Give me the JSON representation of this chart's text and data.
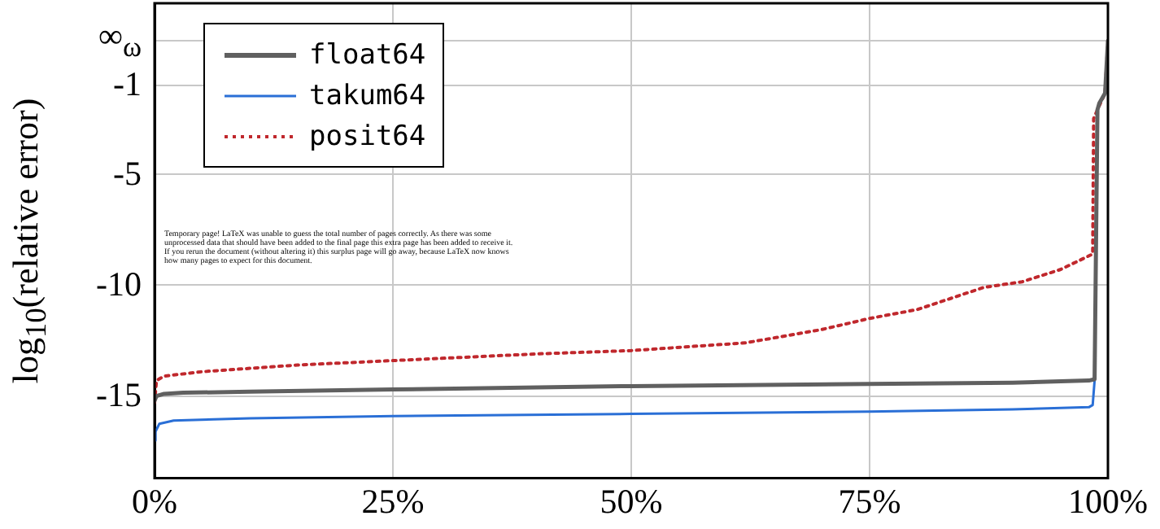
{
  "chart_data": {
    "type": "line",
    "ylabel": "log$_{10}$(relative error)",
    "xlim": [
      0,
      100
    ],
    "xticks": [
      {
        "value": 0,
        "label": "0%"
      },
      {
        "value": 25,
        "label": "25%"
      },
      {
        "value": 50,
        "label": "50%"
      },
      {
        "value": 75,
        "label": "75%"
      },
      {
        "value": 100,
        "label": "100%"
      }
    ],
    "ylim": [
      -18.7,
      2.7
    ],
    "yticks": [
      -15,
      -10,
      -5,
      -1,
      {
        "value": 1,
        "label": "∞$_{ω}$"
      }
    ],
    "grid": true,
    "legend": "top left",
    "marker": "none",
    "annotations": [
      "Temporary page! LaTeX was unable to guess the total number of pages correctly. As there was some unprocessed data that should have been added to the final page this extra page has been added to receive it. If you rerun the document (without altering it) this surplus page will go away, because LaTeX now knows how many pages to expect for this document."
    ],
    "series": [
      {
        "name": "float64",
        "color": "#606060",
        "line_style": "solid",
        "x": [
          0,
          0.2,
          1,
          3,
          10,
          25,
          50,
          75,
          90,
          98,
          98.6,
          98.9,
          99.1,
          99.7,
          100
        ],
        "values": [
          -15.2,
          -15,
          -14.9,
          -14.85,
          -14.8,
          -14.7,
          -14.55,
          -14.45,
          -14.4,
          -14.3,
          -14.24,
          -2.1,
          -1.8,
          -1.35,
          1
        ]
      },
      {
        "name": "takum64",
        "color": "#2a6fd6",
        "line_style": "solid",
        "x": [
          0,
          0.1,
          0.5,
          2,
          10,
          25,
          50,
          75,
          90,
          98,
          98.4,
          98.6,
          98.9
        ],
        "values": [
          -17,
          -16.6,
          -16.25,
          -16.1,
          -16,
          -15.9,
          -15.8,
          -15.7,
          -15.6,
          -15.5,
          -15.4,
          -14.3,
          -2.1
        ]
      },
      {
        "name": "posit64",
        "color": "#c0282d",
        "line_style": "dotted",
        "x": [
          0,
          0.2,
          1,
          5,
          15,
          25,
          40,
          50,
          62,
          70,
          75,
          80,
          87,
          91,
          95,
          98.4,
          98.5,
          98.9,
          99.7,
          100
        ],
        "values": [
          -15.3,
          -14.3,
          -14.1,
          -13.9,
          -13.6,
          -13.4,
          -13.1,
          -12.95,
          -12.6,
          -12,
          -11.5,
          -11.1,
          -10.1,
          -9.85,
          -9.3,
          -8.6,
          -2.5,
          -2.1,
          -1.35,
          1
        ]
      }
    ]
  }
}
